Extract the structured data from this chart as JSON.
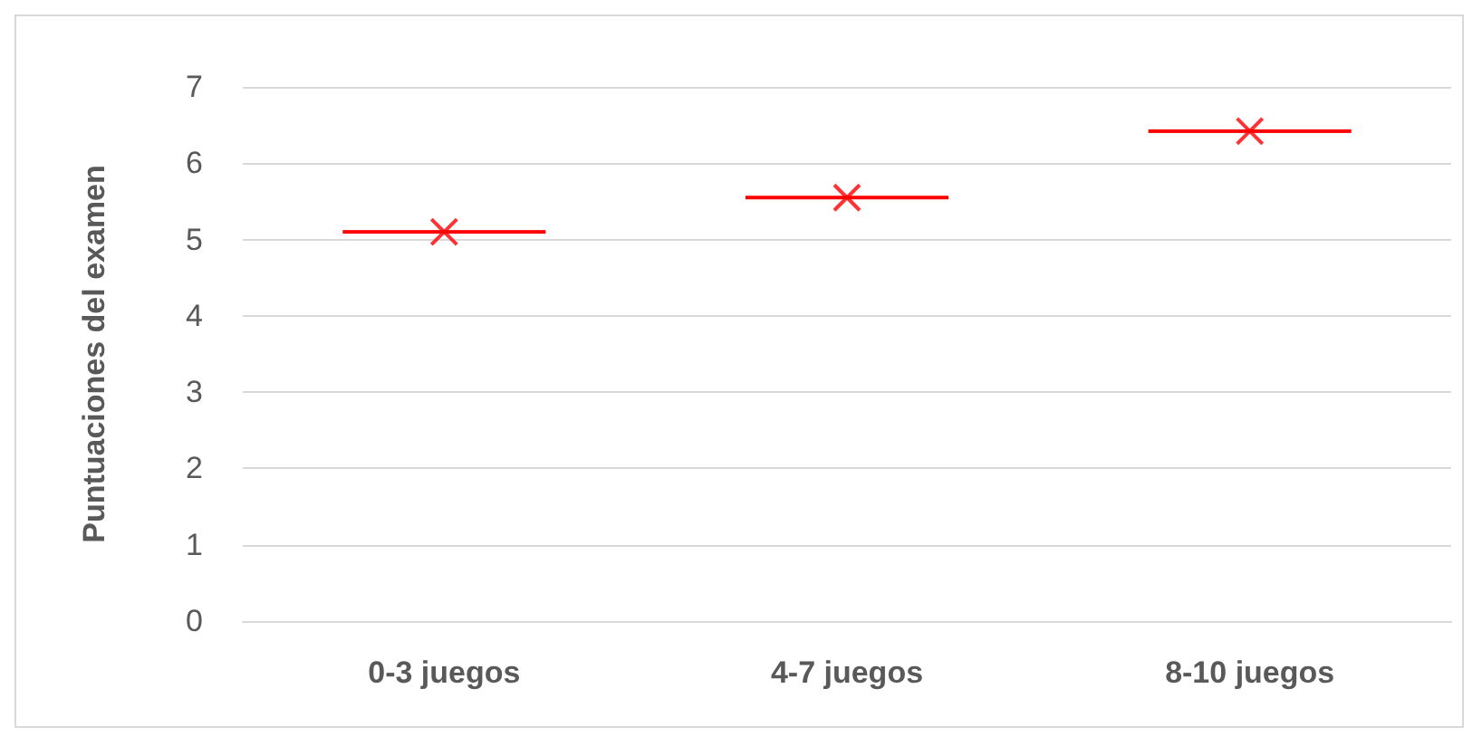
{
  "chart_data": {
    "type": "scatter",
    "ylabel": "Puntuaciones del examen",
    "categories": [
      "0-3 juegos",
      "4-7 juegos",
      "8-10 juegos"
    ],
    "series": [
      {
        "color": "#ff0000",
        "values": [
          5.1,
          5.55,
          6.42
        ]
      }
    ],
    "ylim": [
      0,
      7
    ],
    "yticks": [
      0,
      1,
      2,
      3,
      4,
      5,
      6,
      7
    ],
    "grid": "y",
    "marker": "cross"
  }
}
